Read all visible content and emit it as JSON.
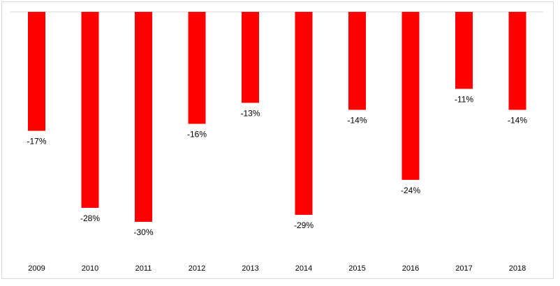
{
  "chart_data": {
    "type": "bar",
    "categories": [
      "2009",
      "2010",
      "2011",
      "2012",
      "2013",
      "2014",
      "2015",
      "2016",
      "2017",
      "2018"
    ],
    "values": [
      -17,
      -28,
      -30,
      -16,
      -13,
      -29,
      -14,
      -24,
      -11,
      -14
    ],
    "data_labels": [
      "-17%",
      "-28%",
      "-30%",
      "-16%",
      "-13%",
      "-29%",
      "-14%",
      "-24%",
      "-11%",
      "-14%"
    ],
    "value_unit": "%",
    "ylim": [
      -30,
      0
    ],
    "bar_color": "#ff0000",
    "grid": false,
    "legend": "none",
    "title": "",
    "xlabel": "",
    "ylabel": ""
  }
}
